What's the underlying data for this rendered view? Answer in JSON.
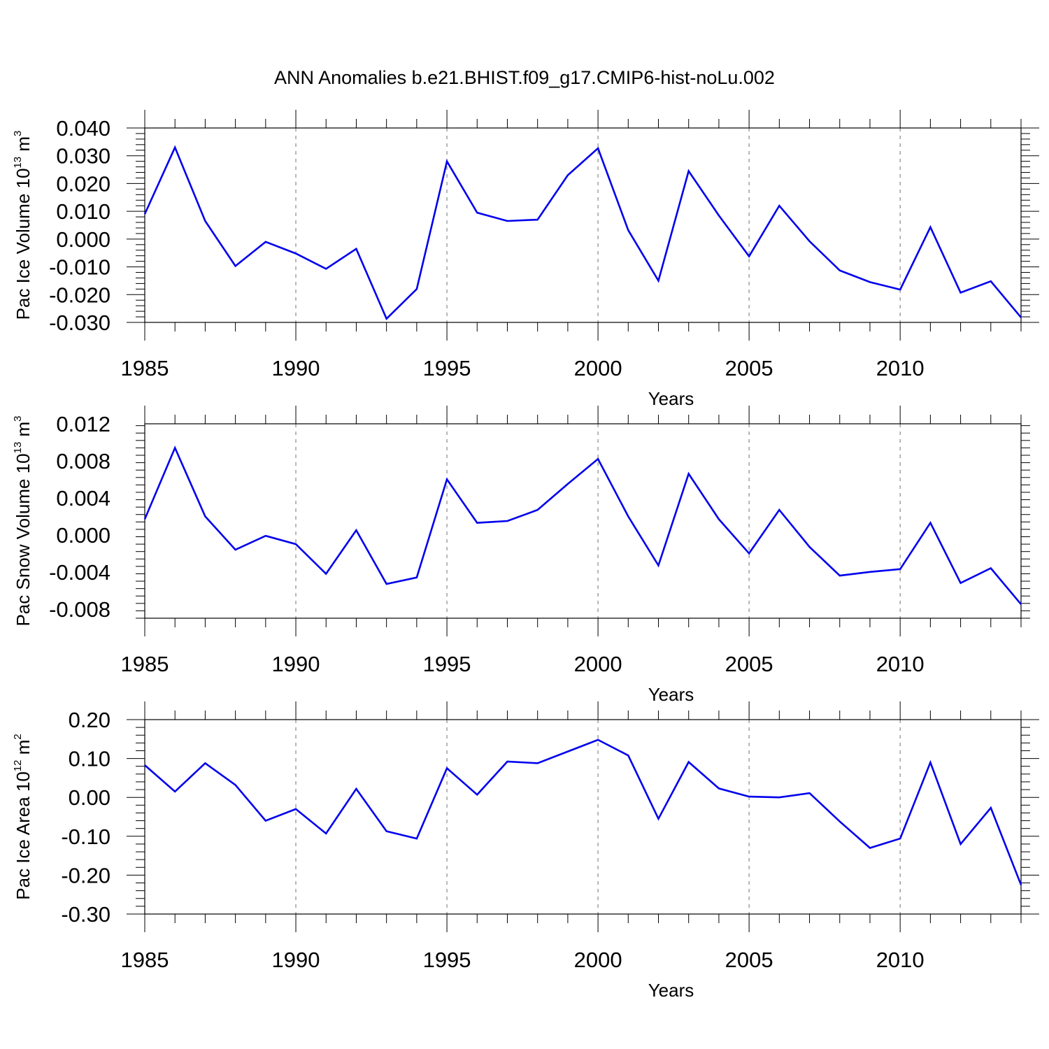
{
  "figure_title": "ANN Anomalies b.e21.BHIST.f09_g17.CMIP6-hist-noLu.002",
  "chart_data": [
    {
      "type": "line",
      "xlabel": "Years",
      "ylabel_main": "Pac Ice Volume 10",
      "ylabel_exp": "13",
      "ylabel_unit": " m",
      "ylabel_unit_exp": "3",
      "xlim": [
        1985,
        2014
      ],
      "ylim": [
        -0.03,
        0.04
      ],
      "xticks": [
        1985,
        1990,
        1995,
        2000,
        2005,
        2010
      ],
      "xtick_labels": [
        "1985",
        "1990",
        "1995",
        "2000",
        "2005",
        "2010"
      ],
      "yticks": [
        -0.03,
        -0.02,
        -0.01,
        0.0,
        0.01,
        0.02,
        0.03,
        0.04
      ],
      "ytick_labels": [
        "-0.030",
        "-0.020",
        "-0.010",
        "0.000",
        "0.010",
        "0.020",
        "0.030",
        "0.040"
      ],
      "grid_x": [
        1990,
        1995,
        2000,
        2005,
        2010
      ],
      "series": [
        {
          "name": "Pac Ice Volume",
          "color": "#0000ee",
          "x": [
            1985,
            1986,
            1987,
            1988,
            1989,
            1990,
            1991,
            1992,
            1993,
            1994,
            1995,
            1996,
            1997,
            1998,
            1999,
            2000,
            2001,
            2002,
            2003,
            2004,
            2005,
            2006,
            2007,
            2008,
            2009,
            2010,
            2011,
            2012,
            2013,
            2014
          ],
          "values": [
            0.009,
            0.033,
            0.0065,
            -0.0097,
            -0.001,
            -0.0052,
            -0.0107,
            -0.0035,
            -0.0287,
            -0.018,
            0.028,
            0.0095,
            0.0065,
            0.007,
            0.023,
            0.0327,
            0.0032,
            -0.015,
            0.0245,
            0.0085,
            -0.0062,
            0.012,
            -0.0008,
            -0.0113,
            -0.0155,
            -0.0182,
            0.0043,
            -0.0193,
            -0.0152,
            -0.0282
          ]
        }
      ]
    },
    {
      "type": "line",
      "xlabel": "Years",
      "ylabel_main": "Pac Snow Volume 10",
      "ylabel_exp": "13",
      "ylabel_unit": " m",
      "ylabel_unit_exp": "3",
      "xlim": [
        1985,
        2014
      ],
      "ylim": [
        -0.009,
        0.012
      ],
      "xticks": [
        1985,
        1990,
        1995,
        2000,
        2005,
        2010
      ],
      "xtick_labels": [
        "1985",
        "1990",
        "1995",
        "2000",
        "2005",
        "2010"
      ],
      "yticks": [
        -0.008,
        -0.004,
        0.0,
        0.004,
        0.008,
        0.012
      ],
      "ytick_labels": [
        "-0.008",
        "-0.004",
        "0.000",
        "0.004",
        "0.008",
        "0.012"
      ],
      "grid_x": [
        1990,
        1995,
        2000,
        2005,
        2010
      ],
      "series": [
        {
          "name": "Pac Snow Volume",
          "color": "#0000ee",
          "x": [
            1985,
            1986,
            1987,
            1988,
            1989,
            1990,
            1991,
            1992,
            1993,
            1994,
            1995,
            1996,
            1997,
            1998,
            1999,
            2000,
            2001,
            2002,
            2003,
            2004,
            2005,
            2006,
            2007,
            2008,
            2009,
            2010,
            2011,
            2012,
            2013,
            2014
          ],
          "values": [
            0.0017,
            0.0094,
            0.002,
            -0.0016,
            -0.0001,
            -0.001,
            -0.0042,
            0.0005,
            -0.0053,
            -0.0046,
            0.006,
            0.0013,
            0.0015,
            0.0027,
            0.0055,
            0.0082,
            0.002,
            -0.0033,
            0.0066,
            0.0017,
            -0.002,
            0.0027,
            -0.0013,
            -0.0044,
            -0.004,
            -0.0037,
            0.0013,
            -0.0052,
            -0.0036,
            -0.0075
          ]
        }
      ]
    },
    {
      "type": "line",
      "xlabel": "Years",
      "ylabel_main": "Pac Ice Area 10",
      "ylabel_exp": "12",
      "ylabel_unit": " m",
      "ylabel_unit_exp": "2",
      "xlim": [
        1985,
        2014
      ],
      "ylim": [
        -0.3,
        0.2
      ],
      "xticks": [
        1985,
        1990,
        1995,
        2000,
        2005,
        2010
      ],
      "xtick_labels": [
        "1985",
        "1990",
        "1995",
        "2000",
        "2005",
        "2010"
      ],
      "yticks": [
        -0.3,
        -0.2,
        -0.1,
        0.0,
        0.1,
        0.2
      ],
      "ytick_labels": [
        "-0.30",
        "-0.20",
        "-0.10",
        "0.00",
        "0.10",
        "0.20"
      ],
      "grid_x": [
        1990,
        1995,
        2000,
        2005,
        2010
      ],
      "series": [
        {
          "name": "Pac Ice Area",
          "color": "#0000ee",
          "x": [
            1985,
            1986,
            1987,
            1988,
            1989,
            1990,
            1991,
            1992,
            1993,
            1994,
            1995,
            1996,
            1997,
            1998,
            1999,
            2000,
            2001,
            2002,
            2003,
            2004,
            2005,
            2006,
            2007,
            2008,
            2009,
            2010,
            2011,
            2012,
            2013,
            2014
          ],
          "values": [
            0.083,
            0.015,
            0.088,
            0.032,
            -0.06,
            -0.03,
            -0.093,
            0.022,
            -0.087,
            -0.106,
            0.075,
            0.007,
            0.092,
            0.088,
            0.118,
            0.148,
            0.108,
            -0.055,
            0.091,
            0.023,
            0.002,
            0.0,
            0.011,
            -0.062,
            -0.13,
            -0.106,
            0.09,
            -0.12,
            -0.027,
            -0.225
          ]
        }
      ]
    }
  ]
}
